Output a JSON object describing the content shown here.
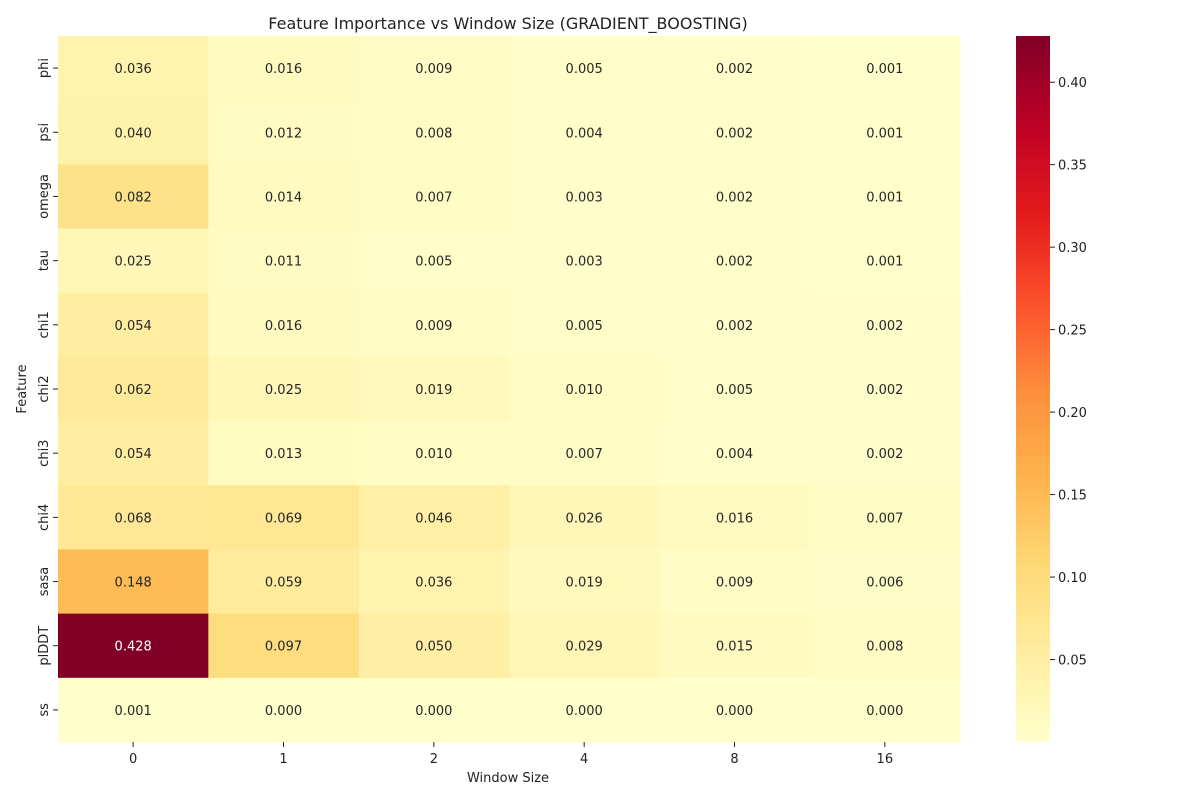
{
  "chart_data": {
    "type": "heatmap",
    "title": "Feature Importance vs Window Size (GRADIENT_BOOSTING)",
    "xlabel": "Window Size",
    "ylabel": "Feature",
    "x": [
      "0",
      "1",
      "2",
      "4",
      "8",
      "16"
    ],
    "y": [
      "phi",
      "psi",
      "omega",
      "tau",
      "chi1",
      "chi2",
      "chi3",
      "chi4",
      "sasa",
      "plDDT",
      "ss"
    ],
    "values": [
      [
        0.036,
        0.016,
        0.009,
        0.005,
        0.002,
        0.001
      ],
      [
        0.04,
        0.012,
        0.008,
        0.004,
        0.002,
        0.001
      ],
      [
        0.082,
        0.014,
        0.007,
        0.003,
        0.002,
        0.001
      ],
      [
        0.025,
        0.011,
        0.005,
        0.003,
        0.002,
        0.001
      ],
      [
        0.054,
        0.016,
        0.009,
        0.005,
        0.002,
        0.002
      ],
      [
        0.062,
        0.025,
        0.019,
        0.01,
        0.005,
        0.002
      ],
      [
        0.054,
        0.013,
        0.01,
        0.007,
        0.004,
        0.002
      ],
      [
        0.068,
        0.069,
        0.046,
        0.026,
        0.016,
        0.007
      ],
      [
        0.148,
        0.059,
        0.036,
        0.019,
        0.009,
        0.006
      ],
      [
        0.428,
        0.097,
        0.05,
        0.029,
        0.015,
        0.008
      ],
      [
        0.001,
        0.0,
        0.0,
        0.0,
        0.0,
        0.0
      ]
    ],
    "colormap": "YlOrRd",
    "colorbar": {
      "range": [
        0.0,
        0.428
      ],
      "ticks": [
        0.05,
        0.1,
        0.15,
        0.2,
        0.25,
        0.3,
        0.35,
        0.4
      ],
      "tick_labels": [
        "0.05",
        "0.10",
        "0.15",
        "0.20",
        "0.25",
        "0.30",
        "0.35",
        "0.40"
      ]
    },
    "annotations_format": "0.000"
  }
}
